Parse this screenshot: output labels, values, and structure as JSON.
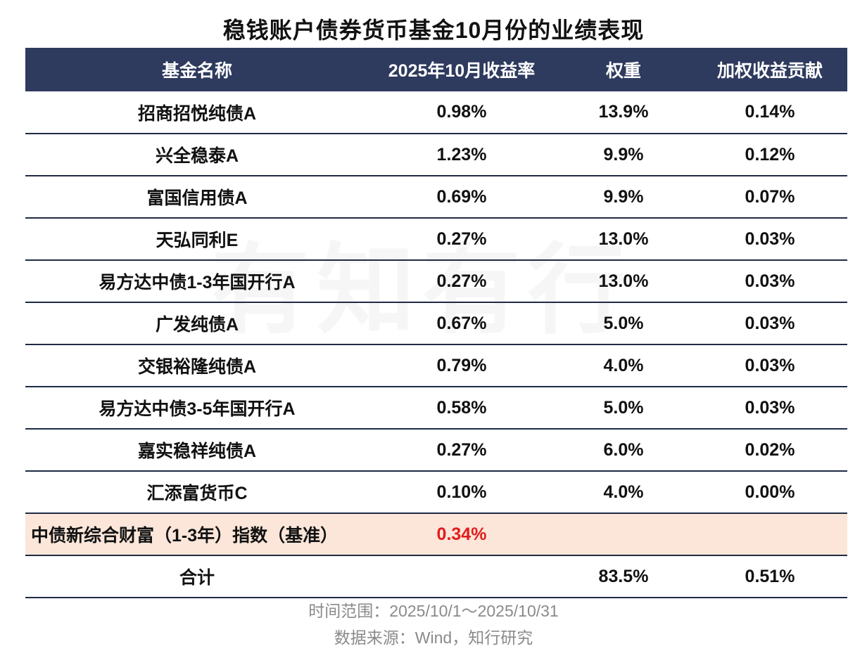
{
  "title": "稳钱账户债券货币基金10月份的业绩表现",
  "watermark": "有知有行",
  "table": {
    "headers": [
      "基金名称",
      "2025年10月收益率",
      "权重",
      "加权收益贡献"
    ],
    "rows": [
      [
        "招商招悦纯债A",
        "0.98%",
        "13.9%",
        "0.14%"
      ],
      [
        "兴全稳泰A",
        "1.23%",
        "9.9%",
        "0.12%"
      ],
      [
        "富国信用债A",
        "0.69%",
        "9.9%",
        "0.07%"
      ],
      [
        "天弘同利E",
        "0.27%",
        "13.0%",
        "0.03%"
      ],
      [
        "易方达中债1-3年国开行A",
        "0.27%",
        "13.0%",
        "0.03%"
      ],
      [
        "广发纯债A",
        "0.67%",
        "5.0%",
        "0.03%"
      ],
      [
        "交银裕隆纯债A",
        "0.79%",
        "4.0%",
        "0.03%"
      ],
      [
        "易方达中债3-5年国开行A",
        "0.58%",
        "5.0%",
        "0.03%"
      ],
      [
        "嘉实稳祥纯债A",
        "0.27%",
        "6.0%",
        "0.02%"
      ],
      [
        "汇添富货币C",
        "0.10%",
        "4.0%",
        "0.00%"
      ]
    ],
    "benchmark": {
      "name": "中债新综合财富（1-3年）指数（基准）",
      "return": "0.34%",
      "weight": "",
      "contribution": ""
    },
    "total": {
      "name": "合计",
      "return": "",
      "weight": "83.5%",
      "contribution": "0.51%"
    }
  },
  "notes": {
    "period": "时间范围：2025/10/1～2025/10/31",
    "source": "数据来源：Wind，知行研究"
  },
  "colors": {
    "header_bg": "#2e3a5e",
    "benchmark_bg": "#fbe6d9",
    "benchmark_value": "#e31b1b"
  }
}
